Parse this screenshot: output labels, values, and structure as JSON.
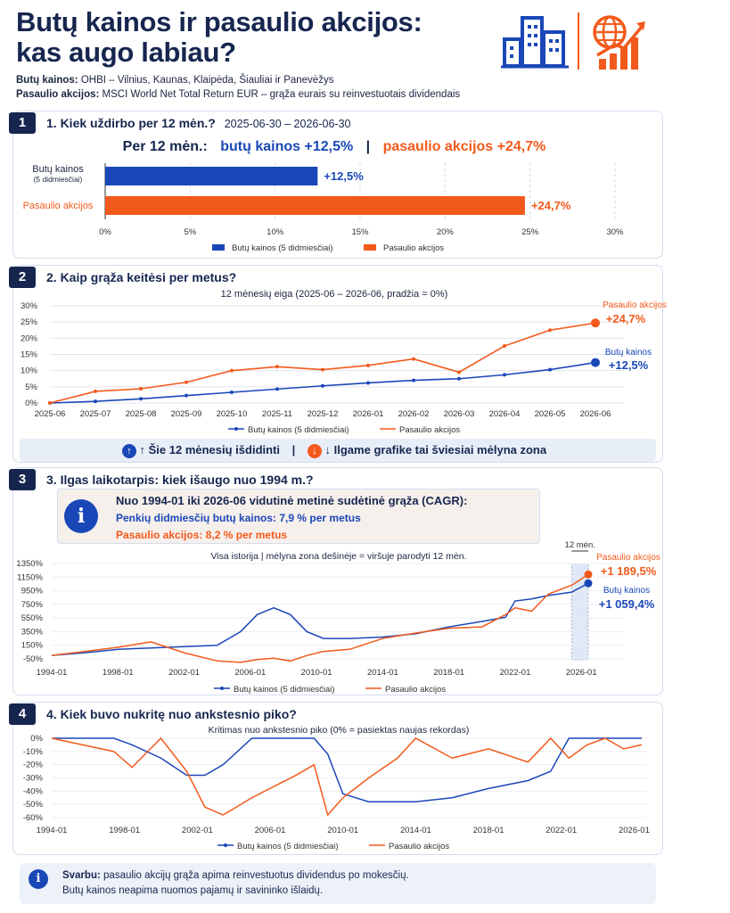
{
  "header": {
    "title_line1": "Butų kainos ir pasaulio akcijos:",
    "title_line2": "kas augo labiau?",
    "housing_label": "Butų kainos:",
    "housing_desc": "OHBI – Vilnius, Kaunas, Klaipėda, Šiauliai ir Panevėžys",
    "stocks_label": "Pasaulio akcijos:",
    "stocks_desc": "MSCI World Net Total Return EUR – grąža eurais su reinvestuotais dividendais",
    "icons": [
      "buildings-icon",
      "globe-growth-icon"
    ]
  },
  "colors": {
    "housing": "#1a47b8",
    "stocks": "#f25a1c",
    "navy": "#16264f",
    "zone": "#dfe8f6"
  },
  "section1": {
    "num": "1",
    "title": "1. Kiek uždirbo per 12 mėn.?",
    "period": "2025-06-30 – 2026-06-30",
    "headline_prefix": "Per 12 mėn.:",
    "headline_housing": "butų kainos +12,5%",
    "headline_sep": "|",
    "headline_stocks": "pasaulio akcijos +24,7%",
    "bar_label_housing": "Butų kainos",
    "bar_label_housing_sub": "(5 didmiesčiai)",
    "bar_label_stocks": "Pasaulio akcijos",
    "value_housing_label": "+12,5%",
    "value_stocks_label": "+24,7%",
    "legend_housing": "Butų kainos (5 didmiesčiai)",
    "legend_stocks": "Pasaulio akcijos"
  },
  "section2": {
    "num": "2",
    "title": "2. Kaip grąža keitėsi per metus?",
    "chart_title": "12 mėnesių eiga (2025-06 – 2026-06, pradžia = 0%)",
    "end_label_stocks": "Pasaulio akcijos",
    "end_value_stocks": "+24,7%",
    "end_label_housing": "Butų kainos",
    "end_value_housing": "+12,5%",
    "legend_housing": "Butų kainos (5 didmiesčiai)",
    "legend_stocks": "Pasaulio akcijos",
    "note_left": "↑ Šie 12 mėnesių išdidinti",
    "note_sep": "|",
    "note_right": "↓ Ilgame grafike tai šviesiai mėlyna zona"
  },
  "section3": {
    "num": "3",
    "title": "3. Ilgas laikotarpis: kiek išaugo nuo 1994 m.?",
    "info_title": "Nuo 1994-01 iki 2026-06 vidutinė metinė sudėtinė grąža (CAGR):",
    "info_housing_label": "Penkių didmiesčių butų kainos:",
    "info_housing_value": "7,9 % per metus",
    "info_stocks_label": "Pasaulio akcijos:",
    "info_stocks_value": "8,2 % per metus",
    "chart_title": "Visa istorija   |   mėlyna zona dešinėje = viršuje parodyti 12 mėn.",
    "zone_label": "12 mėn.",
    "end_label_stocks": "Pasaulio akcijos",
    "end_value_stocks": "+1 189,5%",
    "end_label_housing": "Butų kainos",
    "end_value_housing": "+1 059,4%",
    "legend_housing": "Butų kainos (5 didmiesčiai)",
    "legend_stocks": "Pasaulio akcijos"
  },
  "section4": {
    "num": "4",
    "title": "4. Kiek buvo nukritę nuo ankstesnio piko?",
    "chart_title": "Kritimas nuo ankstesnio piko (0% = pasiektas naujas rekordas)",
    "legend_housing": "Butų kainos (5 didmiesčiai)",
    "legend_stocks": "Pasaulio akcijos"
  },
  "footer": {
    "bold": "Svarbu:",
    "line1": "pasaulio akcijų grąža apima reinvestuotus dividendus po mokesčių.",
    "line2": "Butų kainos neapima nuomos pajamų ir savininko išlaidų."
  },
  "chart_data": [
    {
      "type": "bar",
      "categories": [
        "Butų kainos",
        "Pasaulio akcijos"
      ],
      "values": [
        12.5,
        24.7
      ],
      "xlim": [
        0,
        30
      ],
      "xticks": [
        "0%",
        "5%",
        "10%",
        "15%",
        "20%",
        "25%",
        "30%"
      ],
      "legend": "bottom"
    },
    {
      "type": "line",
      "title": "12 mėnesių eiga (2025-06 – 2026-06, pradžia = 0%)",
      "x": [
        "2025-06",
        "2025-07",
        "2025-08",
        "2025-09",
        "2025-10",
        "2025-11",
        "2025-12",
        "2026-01",
        "2026-02",
        "2026-03",
        "2026-04",
        "2026-05",
        "2026-06"
      ],
      "series": [
        {
          "name": "Butų kainos (5 didmiesčiai)",
          "values": [
            0,
            0.5,
            1.3,
            2.3,
            3.3,
            4.3,
            5.3,
            6.2,
            7.0,
            7.5,
            8.7,
            10.3,
            12.5
          ]
        },
        {
          "name": "Pasaulio akcijos",
          "values": [
            0,
            3.6,
            4.4,
            6.4,
            10.0,
            11.2,
            10.3,
            11.6,
            13.6,
            9.5,
            17.6,
            22.5,
            24.7
          ]
        }
      ],
      "ylim": [
        0,
        30
      ],
      "yticks": [
        "0%",
        "5%",
        "10%",
        "15%",
        "20%",
        "25%",
        "30%"
      ],
      "grid": true,
      "legend": "bottom"
    },
    {
      "type": "line",
      "title": "Visa istorija",
      "x": [
        "1994-01",
        "1996-01",
        "1998-01",
        "2000-01",
        "2002-01",
        "2004-01",
        "2005-06",
        "2006-06",
        "2007-06",
        "2008-06",
        "2009-06",
        "2010-06",
        "2012-01",
        "2014-01",
        "2016-01",
        "2018-01",
        "2020-01",
        "2021-06",
        "2022-01",
        "2023-01",
        "2024-01",
        "2025-06",
        "2026-06"
      ],
      "series": [
        {
          "name": "Butų kainos (5 didmiesčiai)",
          "values": [
            0,
            40,
            90,
            110,
            130,
            150,
            350,
            600,
            700,
            600,
            350,
            250,
            250,
            270,
            320,
            420,
            500,
            560,
            800,
            830,
            880,
            930,
            1059.4
          ]
        },
        {
          "name": "Pasaulio akcijos",
          "values": [
            0,
            60,
            120,
            200,
            40,
            -80,
            -100,
            -60,
            -40,
            -80,
            0,
            60,
            90,
            250,
            330,
            400,
            420,
            600,
            700,
            650,
            900,
            1030,
            1189.5
          ]
        }
      ],
      "ylim": [
        -50,
        1350
      ],
      "yticks": [
        "-50%",
        "150%",
        "350%",
        "550%",
        "750%",
        "950%",
        "1150%",
        "1350%"
      ],
      "xticks": [
        "1994-01",
        "1998-01",
        "2002-01",
        "2006-01",
        "2010-01",
        "2014-01",
        "2018-01",
        "2022-01",
        "2026-01"
      ],
      "legend": "bottom"
    },
    {
      "type": "line",
      "title": "Kritimas nuo ankstesnio piko (0% = pasiektas naujas rekordas)",
      "x": [
        "1994-01",
        "1997-06",
        "1998-06",
        "2000-01",
        "2001-06",
        "2002-06",
        "2003-06",
        "2005-01",
        "2006-06",
        "2007-06",
        "2008-06",
        "2009-03",
        "2010-01",
        "2011-06",
        "2013-01",
        "2014-01",
        "2016-01",
        "2018-01",
        "2020-03",
        "2021-06",
        "2022-06",
        "2023-06",
        "2024-06",
        "2025-06",
        "2026-06"
      ],
      "series": [
        {
          "name": "Butų kainos (5 didmiesčiai)",
          "values": [
            0,
            0,
            -5,
            -15,
            -28,
            -28,
            -20,
            0,
            0,
            0,
            0,
            -12,
            -42,
            -48,
            -48,
            -48,
            -45,
            -38,
            -32,
            -25,
            0,
            0,
            0,
            0,
            0
          ]
        },
        {
          "name": "Pasaulio akcijos",
          "values": [
            0,
            -10,
            -22,
            0,
            -25,
            -52,
            -58,
            -45,
            -35,
            -28,
            -20,
            -58,
            -45,
            -30,
            -15,
            0,
            -15,
            -8,
            -18,
            0,
            -15,
            -5,
            0,
            -8,
            -5
          ]
        }
      ],
      "ylim": [
        -60,
        0
      ],
      "yticks": [
        "0%",
        "-10%",
        "-20%",
        "-30%",
        "-40%",
        "-50%",
        "-60%"
      ],
      "xticks": [
        "1994-01",
        "1998-01",
        "2002-01",
        "2006-01",
        "2010-01",
        "2014-01",
        "2018-01",
        "2022-01",
        "2026-01"
      ],
      "legend": "bottom"
    }
  ]
}
